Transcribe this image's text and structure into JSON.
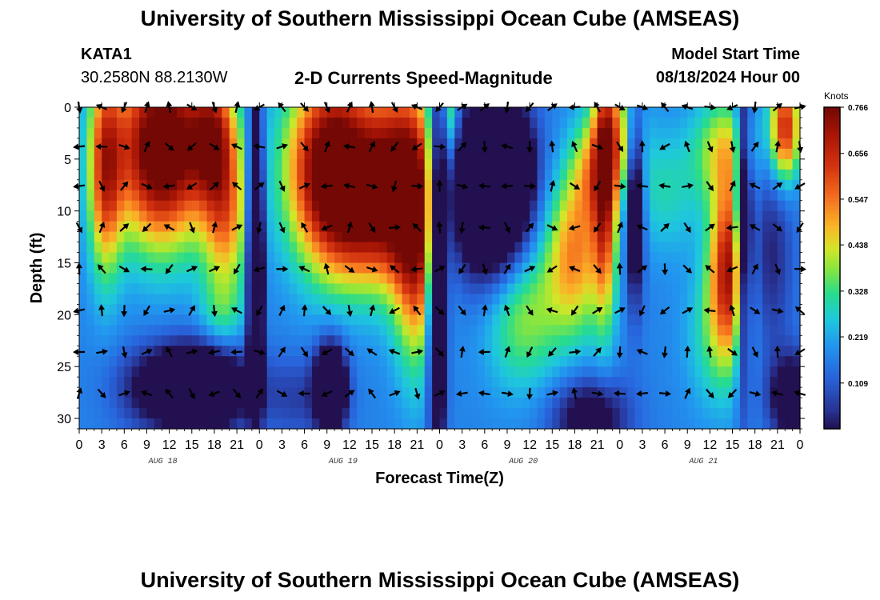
{
  "header": {
    "title": "University of Southern Mississippi Ocean Cube (AMSEAS)",
    "station_id": "KATA1",
    "station_coords": "30.2580N  88.2130W",
    "product": "2-D Currents Speed-Magnitude",
    "model_start_label": "Model Start Time",
    "model_start_value": "08/18/2024 Hour 00",
    "footer_title": "University of Southern Mississippi Ocean Cube (AMSEAS)"
  },
  "chart_data": {
    "type": "heatmap",
    "title": "2-D Currents Speed-Magnitude",
    "xlabel": "Forecast Time(Z)",
    "ylabel": "Depth (ft)",
    "x_range_hours": [
      0,
      96
    ],
    "y_range_ft": [
      0,
      31
    ],
    "y_ticks": [
      0,
      5,
      10,
      15,
      20,
      25,
      30
    ],
    "x_tick_labels": [
      "0",
      "3",
      "6",
      "9",
      "12",
      "15",
      "18",
      "21",
      "0",
      "3",
      "6",
      "9",
      "12",
      "15",
      "18",
      "21",
      "0",
      "3",
      "6",
      "9",
      "12",
      "15",
      "18",
      "21",
      "0",
      "3",
      "6",
      "9",
      "12",
      "15",
      "18",
      "21",
      "0"
    ],
    "date_labels": [
      {
        "text": "AUG 18",
        "hour": 12
      },
      {
        "text": "AUG 19",
        "hour": 36
      },
      {
        "text": "AUG 20",
        "hour": 60
      },
      {
        "text": "AUG 21",
        "hour": 84
      }
    ],
    "colorbar": {
      "unit_label": "Knots",
      "min": 0.0,
      "max": 0.766,
      "tick_labels": [
        "0.766",
        "0.656",
        "0.547",
        "0.438",
        "0.328",
        "0.219",
        "0.109"
      ],
      "tick_values": [
        0.766,
        0.656,
        0.547,
        0.438,
        0.328,
        0.219,
        0.109
      ]
    },
    "speed_features": [
      {
        "hour": 3.5,
        "depth": 6,
        "sx": 2.2,
        "sy": 10,
        "value": 0.42
      },
      {
        "hour": 11,
        "depth": 4,
        "sx": 6,
        "sy": 9,
        "value": 0.72
      },
      {
        "hour": 18,
        "depth": 3,
        "sx": 3,
        "sy": 6,
        "value": 0.42
      },
      {
        "hour": 19.5,
        "depth": 11,
        "sx": 3,
        "sy": 7,
        "value": 0.32
      },
      {
        "hour": 19,
        "depth": 20,
        "sx": 3,
        "sy": 4,
        "value": 0.12
      },
      {
        "hour": 23.5,
        "depth": 14,
        "sx": 0.9,
        "sy": 14,
        "value": -0.7
      },
      {
        "hour": 34,
        "depth": 6,
        "sx": 6,
        "sy": 9,
        "value": 0.75
      },
      {
        "hour": 38,
        "depth": 12,
        "sx": 5,
        "sy": 6,
        "value": 0.2
      },
      {
        "hour": 42,
        "depth": 7,
        "sx": 4,
        "sy": 9,
        "value": 0.45
      },
      {
        "hour": 45,
        "depth": 12,
        "sx": 3,
        "sy": 12,
        "value": 0.5
      },
      {
        "hour": 47.7,
        "depth": 16,
        "sx": 1.2,
        "sy": 16,
        "value": -0.55
      },
      {
        "hour": 49.5,
        "depth": 0,
        "sx": 1,
        "sy": 5,
        "value": 0.2
      },
      {
        "hour": 55,
        "depth": 8,
        "sx": 5,
        "sy": 8,
        "value": -0.6
      },
      {
        "hour": 57,
        "depth": 5,
        "sx": 2.5,
        "sy": 4,
        "value": -0.35
      },
      {
        "hour": 59,
        "depth": 20,
        "sx": 5,
        "sy": 7,
        "value": 0.22
      },
      {
        "hour": 66,
        "depth": 14,
        "sx": 4,
        "sy": 8,
        "value": 0.35
      },
      {
        "hour": 71.5,
        "depth": 3,
        "sx": 3,
        "sy": 6,
        "value": 0.3
      },
      {
        "hour": 68,
        "depth": 6,
        "sx": 2.5,
        "sy": 5,
        "value": 0.2
      },
      {
        "hour": 70,
        "depth": 8,
        "sx": 1.5,
        "sy": 12,
        "value": 0.4
      },
      {
        "hour": 74,
        "depth": 9,
        "sx": 1.2,
        "sy": 9,
        "value": -0.4
      },
      {
        "hour": 78,
        "depth": 8,
        "sx": 5,
        "sy": 6,
        "value": 0.12
      },
      {
        "hour": 86,
        "depth": 4,
        "sx": 4,
        "sy": 5,
        "value": 0.25
      },
      {
        "hour": 86.5,
        "depth": 15,
        "sx": 2.5,
        "sy": 8,
        "value": 0.5
      },
      {
        "hour": 85,
        "depth": 22,
        "sx": 4,
        "sy": 7,
        "value": 0.15
      },
      {
        "hour": 88.5,
        "depth": 12,
        "sx": 1,
        "sy": 14,
        "value": -0.45
      },
      {
        "hour": 94,
        "depth": 2,
        "sx": 2,
        "sy": 5,
        "value": 0.5
      },
      {
        "hour": 92,
        "depth": 14,
        "sx": 3,
        "sy": 10,
        "value": -0.15
      },
      {
        "hour": 16,
        "depth": 27,
        "sx": 6,
        "sy": 4,
        "value": -0.5
      },
      {
        "hour": 33.5,
        "depth": 27,
        "sx": 2,
        "sy": 4,
        "value": -0.5
      },
      {
        "hour": 29,
        "depth": 28,
        "sx": 5,
        "sy": 4,
        "value": -0.1
      },
      {
        "hour": 68,
        "depth": 30,
        "sx": 5,
        "sy": 4,
        "value": -0.25
      },
      {
        "hour": 95,
        "depth": 28,
        "sx": 3,
        "sy": 4,
        "value": -0.3
      },
      {
        "hour": 9,
        "depth": 27,
        "sx": 5,
        "sy": 4,
        "value": -0.12
      }
    ],
    "speed_baseline": 0.17,
    "arrow_depths_ft": [
      0,
      3.8,
      7.6,
      11.6,
      15.6,
      19.6,
      23.6,
      27.6
    ],
    "arrow_interval_hours": 3
  }
}
